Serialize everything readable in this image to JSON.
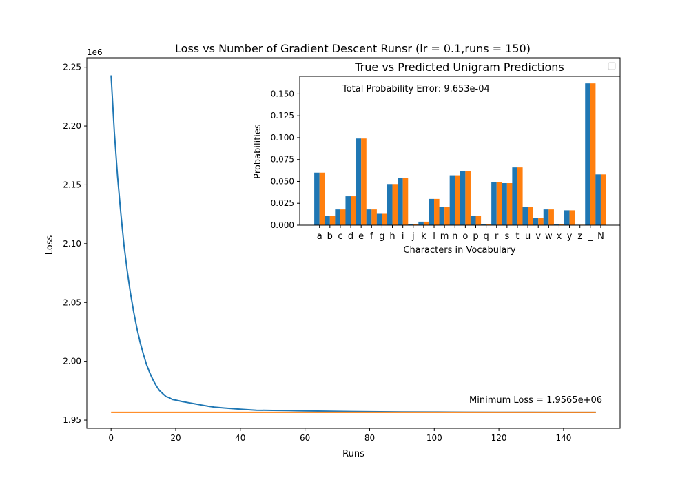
{
  "chart_data": [
    {
      "type": "line",
      "title": "Loss vs Number of Gradient Descent Runsr (lr = 0.1,runs = 150)",
      "xlabel": "Runs",
      "ylabel": "Loss",
      "y_offset_label": "1e6",
      "xlim": [
        -7.5,
        157.5
      ],
      "ylim": [
        1.943,
        2.258
      ],
      "x_ticks": [
        0,
        20,
        40,
        60,
        80,
        100,
        120,
        140
      ],
      "x_tick_labels": [
        "0",
        "20",
        "40",
        "60",
        "80",
        "100",
        "120",
        "140"
      ],
      "y_ticks": [
        1.95,
        2.0,
        2.05,
        2.1,
        2.15,
        2.2,
        2.25
      ],
      "y_tick_labels": [
        "1.95",
        "2.00",
        "2.05",
        "2.10",
        "2.15",
        "2.20",
        "2.25"
      ],
      "annotation": "Minimum Loss = 1.9565e+06",
      "grid": false,
      "series": [
        {
          "color": "#1f77b4",
          "x": [
            0,
            1,
            2,
            3,
            4,
            5,
            6,
            7,
            8,
            9,
            10,
            11,
            12,
            13,
            14,
            15,
            16,
            17,
            18,
            19,
            20,
            22,
            24,
            26,
            28,
            30,
            32,
            35,
            40,
            45,
            50,
            55,
            60,
            70,
            80,
            90,
            100,
            110,
            120,
            130,
            140,
            150
          ],
          "y": [
            2.243,
            2.195,
            2.157,
            2.126,
            2.099,
            2.077,
            2.058,
            2.042,
            2.028,
            2.016,
            2.006,
            1.997,
            1.99,
            1.984,
            1.979,
            1.975,
            1.9725,
            1.97,
            1.969,
            1.9675,
            1.967,
            1.9658,
            1.9648,
            1.9638,
            1.9628,
            1.9618,
            1.961,
            1.9603,
            1.9592,
            1.9584,
            1.9582,
            1.9581,
            1.9578,
            1.9574,
            1.9571,
            1.9569,
            1.9568,
            1.9567,
            1.9566,
            1.9566,
            1.9565,
            1.9565
          ]
        },
        {
          "color": "#ff7f0e",
          "x": [
            0,
            150
          ],
          "y": [
            1.9565,
            1.9565
          ]
        }
      ]
    },
    {
      "type": "bar",
      "title": "True vs Predicted Unigram Predictions",
      "xlabel": "Characters in Vocabulary",
      "ylabel": "Probabilities",
      "annotation": "Total Probability Error: 9.653e-04",
      "legend_placement": "top-right",
      "ylim": [
        0,
        0.17
      ],
      "y_ticks": [
        0,
        0.025,
        0.05,
        0.075,
        0.1,
        0.125,
        0.15
      ],
      "y_tick_labels": [
        "0.000",
        "0.025",
        "0.050",
        "0.075",
        "0.100",
        "0.125",
        "0.150"
      ],
      "categories": [
        "a",
        "b",
        "c",
        "d",
        "e",
        "f",
        "g",
        "h",
        "i",
        "j",
        "k",
        "l",
        "m",
        "n",
        "o",
        "p",
        "q",
        "r",
        "s",
        "t",
        "u",
        "v",
        "w",
        "x",
        "y",
        "z",
        "_",
        "N"
      ],
      "series": [
        {
          "color": "#1f77b4",
          "values": [
            0.06,
            0.011,
            0.018,
            0.033,
            0.099,
            0.018,
            0.013,
            0.047,
            0.054,
            0.001,
            0.004,
            0.03,
            0.021,
            0.057,
            0.062,
            0.011,
            0.001,
            0.049,
            0.048,
            0.066,
            0.021,
            0.008,
            0.018,
            0.001,
            0.017,
            0.0005,
            0.162,
            0.058
          ]
        },
        {
          "color": "#ff7f0e",
          "values": [
            0.06,
            0.011,
            0.018,
            0.033,
            0.099,
            0.018,
            0.013,
            0.047,
            0.054,
            0.001,
            0.004,
            0.03,
            0.021,
            0.057,
            0.062,
            0.011,
            0.001,
            0.049,
            0.048,
            0.066,
            0.021,
            0.008,
            0.018,
            0.001,
            0.017,
            0.0005,
            0.162,
            0.058
          ]
        }
      ]
    }
  ]
}
